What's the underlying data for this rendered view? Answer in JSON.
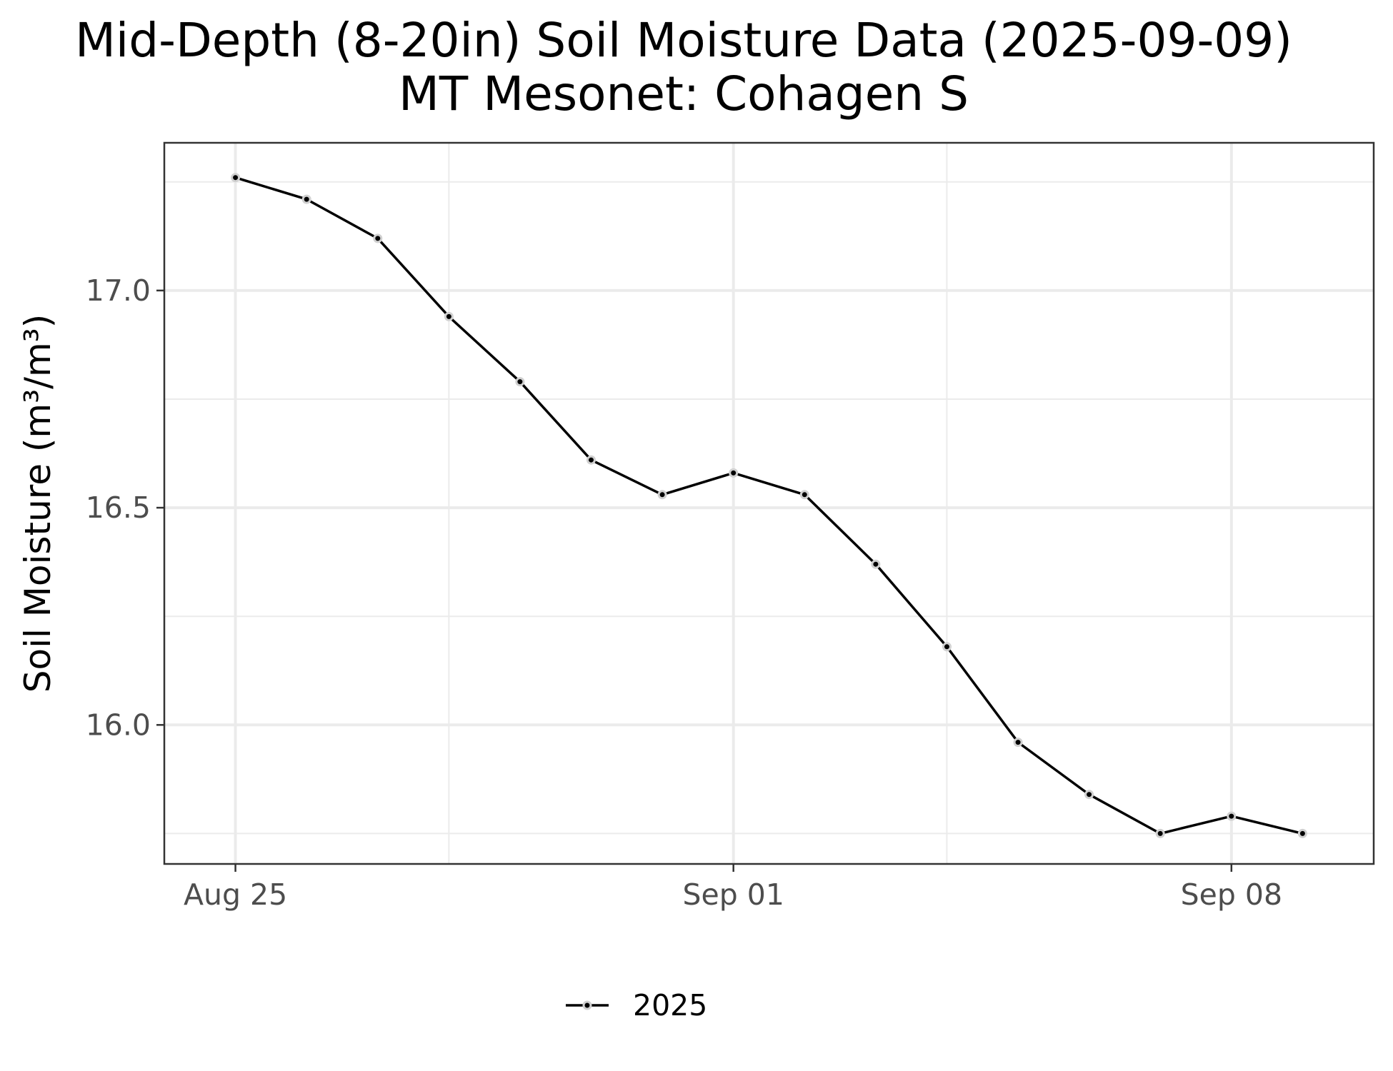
{
  "title_line1": "Mid-Depth (8-20in) Soil Moisture Data (2025-09-09)",
  "title_line2": "MT Mesonet: Cohagen S",
  "chart_data": {
    "type": "line",
    "title": "Mid-Depth (8-20in) Soil Moisture Data (2025-09-09)\nMT Mesonet: Cohagen S",
    "xlabel": "",
    "ylabel": "Soil Moisture (m³/m³)",
    "x": [
      "2025-08-25",
      "2025-08-26",
      "2025-08-27",
      "2025-08-28",
      "2025-08-29",
      "2025-08-30",
      "2025-08-31",
      "2025-09-01",
      "2025-09-02",
      "2025-09-03",
      "2025-09-04",
      "2025-09-05",
      "2025-09-06",
      "2025-09-07",
      "2025-09-08",
      "2025-09-09"
    ],
    "series": [
      {
        "name": "2025",
        "values": [
          17.26,
          17.21,
          17.12,
          16.94,
          16.79,
          16.61,
          16.53,
          16.58,
          16.53,
          16.37,
          16.18,
          15.96,
          15.84,
          15.75,
          15.79,
          15.75
        ]
      }
    ],
    "xlim": [
      "2025-08-24",
      "2025-09-10"
    ],
    "ylim": [
      15.68,
      17.34
    ],
    "x_ticks": [
      "2025-08-25",
      "2025-09-01",
      "2025-09-08"
    ],
    "x_tick_labels": [
      "Aug 25",
      "Sep 01",
      "Sep 08"
    ],
    "x_minor_ticks": [
      "2025-08-28",
      "2025-09-04"
    ],
    "y_ticks": [
      16.0,
      16.5,
      17.0
    ],
    "y_tick_labels": [
      "16.0",
      "16.5",
      "17.0"
    ],
    "y_minor_ticks": [
      15.75,
      16.25,
      16.75,
      17.25
    ],
    "grid": true,
    "legend": {
      "position": "bottom",
      "entries": [
        "2025"
      ]
    },
    "colors": {
      "line": "#000000",
      "point_outline": "#d0d0d0",
      "grid": "#ebebeb",
      "panel_border": "#333333"
    }
  }
}
